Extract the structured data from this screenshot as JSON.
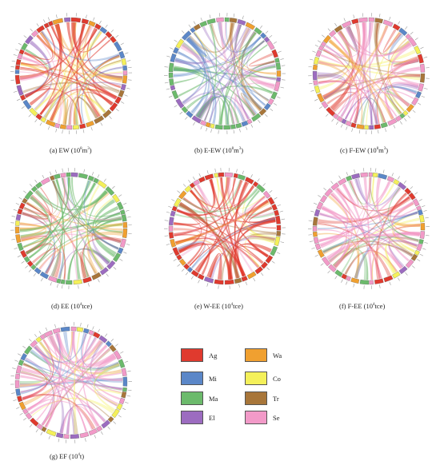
{
  "panels": [
    {
      "key": "a",
      "caption": "(a) EW (10",
      "sup": "8",
      "unit": "m",
      "unit_sup": "3",
      "close": ")",
      "dominant": "Ag"
    },
    {
      "key": "b",
      "caption": "(b) E-EW (10",
      "sup": "8",
      "unit": "m",
      "unit_sup": "3",
      "close": ")",
      "dominant": "Ma"
    },
    {
      "key": "c",
      "caption": "(c) F-EW (10",
      "sup": "8",
      "unit": "m",
      "unit_sup": "3",
      "close": ")",
      "dominant": "Se"
    },
    {
      "key": "d",
      "caption": "(d) EE (10",
      "sup": "4",
      "unit": "tce",
      "unit_sup": "",
      "close": ")",
      "dominant": "Ma"
    },
    {
      "key": "e",
      "caption": "(e) W-EE (10",
      "sup": "4",
      "unit": "tce",
      "unit_sup": "",
      "close": ")",
      "dominant": "Ag"
    },
    {
      "key": "f",
      "caption": "(f) F-EE (10",
      "sup": "4",
      "unit": "tce",
      "unit_sup": "",
      "close": ")",
      "dominant": "Se"
    },
    {
      "key": "g",
      "caption": "(g) EF (10",
      "sup": "4",
      "unit": "t",
      "unit_sup": "",
      "close": ")",
      "dominant": "Se"
    }
  ],
  "legend": [
    {
      "code": "Ag",
      "color": "#e03a2e"
    },
    {
      "code": "Wa",
      "color": "#f0a030"
    },
    {
      "code": "Mi",
      "color": "#5b87c8"
    },
    {
      "code": "Co",
      "color": "#f4f05a"
    },
    {
      "code": "Ma",
      "color": "#6cba6c"
    },
    {
      "code": "Tr",
      "color": "#a8763a"
    },
    {
      "code": "El",
      "color": "#9c6cc0"
    },
    {
      "code": "Se",
      "color": "#f29ac8"
    }
  ]
}
